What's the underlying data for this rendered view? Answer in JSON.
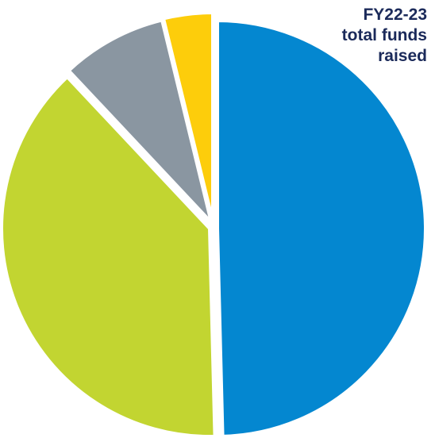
{
  "chart_data": {
    "type": "pie",
    "title_lines": [
      "FY22-23",
      "total funds",
      "raised"
    ],
    "slices": [
      {
        "value": 49.6,
        "color": "#0487d0"
      },
      {
        "value": 38.4,
        "color": "#c2d531"
      },
      {
        "value": 8.2,
        "color": "#8a96a1"
      },
      {
        "value": 3.8,
        "color": "#fdcd0b"
      }
    ],
    "legend": "none"
  }
}
